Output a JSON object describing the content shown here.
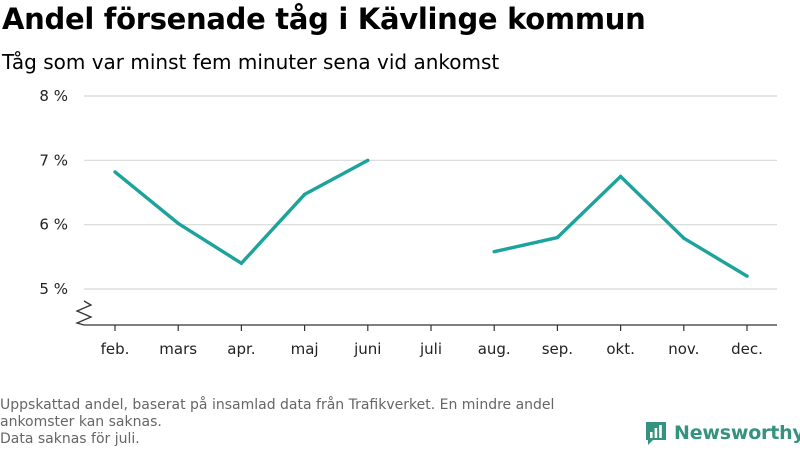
{
  "title": "Andel försenade tåg i Kävlinge kommun",
  "subtitle": "Tåg som var minst fem minuter sena vid ankomst",
  "footnote": {
    "line1": "Uppskattad andel, baserat på insamlad data från Trafikverket. En mindre andel",
    "line2": "ankomster kan saknas.",
    "line3": "Data saknas för juli."
  },
  "logo": {
    "text": "Newsworthy",
    "color": "#34927e",
    "icon": "bar-chart-icon"
  },
  "colors": {
    "line": "#1ba39c",
    "grid": "#d8d8d8",
    "axis": "#333333"
  },
  "chart_data": {
    "type": "line",
    "categories": [
      "feb.",
      "mars",
      "apr.",
      "maj",
      "juni",
      "juli",
      "aug.",
      "sep.",
      "okt.",
      "nov.",
      "dec."
    ],
    "series": [
      {
        "values": [
          6.82,
          6.02,
          5.4,
          6.47,
          7.0,
          null,
          5.58,
          5.8,
          6.75,
          5.79,
          5.2
        ]
      }
    ],
    "ylim": [
      4.5,
      8
    ],
    "yticks": [
      5,
      6,
      7,
      8
    ],
    "ytick_labels": [
      "5 %",
      "6 %",
      "7 %",
      "8 %"
    ],
    "y_axis_break": true,
    "grid": true,
    "legend": false,
    "xlabel": "",
    "ylabel": ""
  }
}
